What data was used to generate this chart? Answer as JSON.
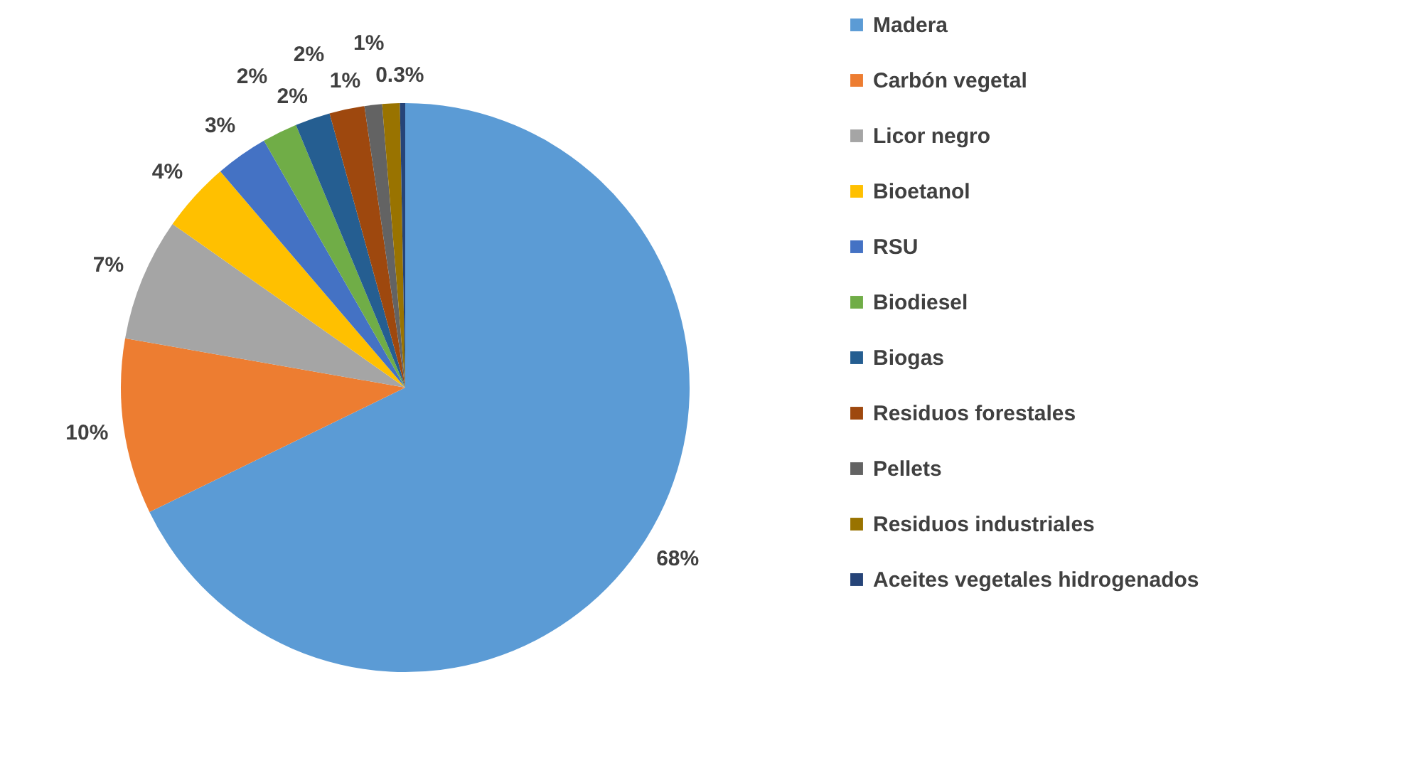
{
  "chart_data": {
    "type": "pie",
    "categories": [
      "Madera",
      "Carbón vegetal",
      "Licor negro",
      "Bioetanol",
      "RSU",
      "Biodiesel",
      "Biogas",
      "Residuos forestales",
      "Pellets",
      "Residuos industriales",
      "Aceites vegetales hidrogenados"
    ],
    "values": [
      68,
      10,
      7,
      4,
      3,
      2,
      2,
      2,
      1,
      1,
      0.3
    ],
    "value_labels": [
      "68%",
      "10%",
      "7%",
      "4%",
      "3%",
      "2%",
      "2%",
      "2%",
      "1%",
      "1%",
      "0.3%"
    ],
    "colors": [
      "#5b9bd5",
      "#ed7d31",
      "#a5a5a5",
      "#ffc000",
      "#4472c4",
      "#70ad47",
      "#255e91",
      "#9e480e",
      "#636363",
      "#997300",
      "#264478"
    ],
    "legend": "right"
  }
}
